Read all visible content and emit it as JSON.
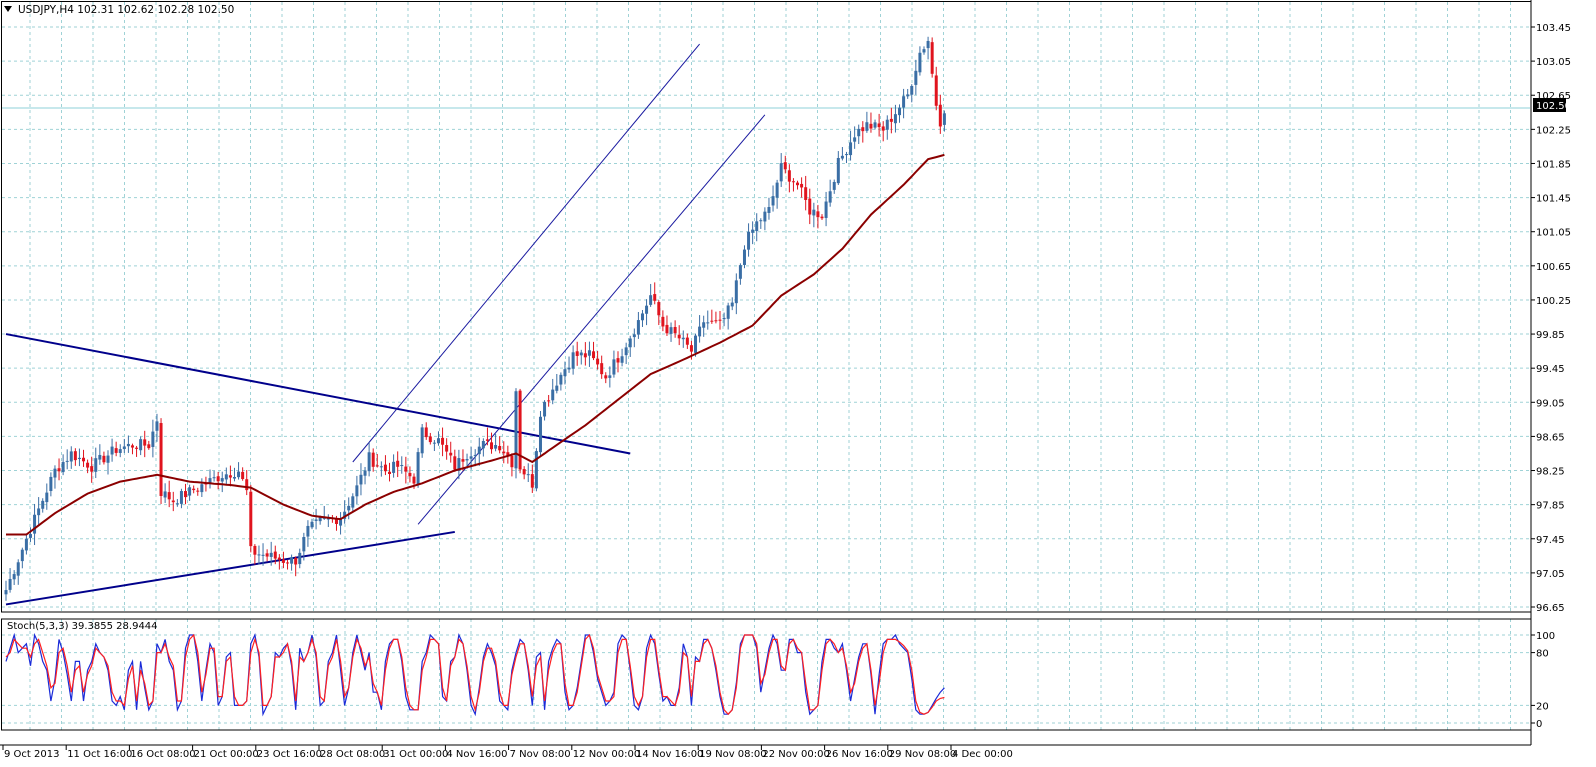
{
  "header": {
    "symbol_info": "USDJPY,H4  102.31 102.62 102.28 102.50",
    "menu_icon": "triangle-down-icon"
  },
  "colors": {
    "background": "#ffffff",
    "grid": "#9fd2d6",
    "frame": "#000000",
    "bull_candle": "#3a6ea5",
    "bear_candle": "#e0141e",
    "moving_average": "#8b0000",
    "trendline": "#00008b",
    "channel": "#1a1aa0",
    "stoch_main": "#1a2bd8",
    "stoch_signal": "#ff2020",
    "price_label_bg": "#000000",
    "price_label_fg": "#ffffff"
  },
  "chart_data": [
    {
      "type": "candlestick",
      "title": "USDJPY,H4",
      "last_price_label": "102.50",
      "ylim": [
        96.55,
        103.6
      ],
      "y_ticks": [
        "103.45",
        "103.05",
        "102.65",
        "102.25",
        "101.85",
        "101.45",
        "101.05",
        "100.65",
        "100.25",
        "99.85",
        "99.45",
        "99.05",
        "98.65",
        "98.25",
        "97.85",
        "97.45",
        "97.05",
        "96.65"
      ],
      "x_tick_labels": [
        "9 Oct 2013",
        "11 Oct 16:00",
        "16 Oct 08:00",
        "21 Oct 00:00",
        "23 Oct 16:00",
        "28 Oct 08:00",
        "31 Oct 00:00",
        "4 Nov 16:00",
        "7 Nov 08:00",
        "12 Nov 00:00",
        "14 Nov 16:00",
        "19 Nov 08:00",
        "22 Nov 00:00",
        "26 Nov 16:00",
        "29 Nov 08:00",
        "4 Dec 00:00"
      ],
      "bar_count": 231,
      "close_path": [
        [
          0,
          96.85
        ],
        [
          5,
          97.45
        ],
        [
          12,
          98.25
        ],
        [
          16,
          98.45
        ],
        [
          21,
          98.3
        ],
        [
          27,
          98.5
        ],
        [
          31,
          98.55
        ],
        [
          35,
          98.55
        ],
        [
          37,
          98.85
        ],
        [
          38,
          98.0
        ],
        [
          41,
          97.9
        ],
        [
          45,
          98.0
        ],
        [
          49,
          98.1
        ],
        [
          53,
          98.2
        ],
        [
          57,
          98.25
        ],
        [
          59,
          98.0
        ],
        [
          60,
          97.3
        ],
        [
          64,
          97.25
        ],
        [
          68,
          97.2
        ],
        [
          71,
          97.2
        ],
        [
          74,
          97.55
        ],
        [
          77,
          97.65
        ],
        [
          82,
          97.7
        ],
        [
          86,
          98.05
        ],
        [
          89,
          98.4
        ],
        [
          93,
          98.25
        ],
        [
          96,
          98.3
        ],
        [
          100,
          98.15
        ],
        [
          102,
          98.7
        ],
        [
          106,
          98.6
        ],
        [
          110,
          98.3
        ],
        [
          113,
          98.45
        ],
        [
          117,
          98.55
        ],
        [
          121,
          98.55
        ],
        [
          124,
          98.35
        ],
        [
          125,
          99.2
        ],
        [
          126,
          98.3
        ],
        [
          129,
          98.1
        ],
        [
          131,
          98.95
        ],
        [
          135,
          99.3
        ],
        [
          139,
          99.6
        ],
        [
          143,
          99.6
        ],
        [
          147,
          99.35
        ],
        [
          151,
          99.65
        ],
        [
          155,
          100.0
        ],
        [
          158,
          100.3
        ],
        [
          161,
          99.95
        ],
        [
          165,
          99.8
        ],
        [
          168,
          99.65
        ],
        [
          171,
          100.0
        ],
        [
          175,
          99.95
        ],
        [
          178,
          100.2
        ],
        [
          181,
          100.9
        ],
        [
          184,
          101.15
        ],
        [
          187,
          101.3
        ],
        [
          190,
          101.8
        ],
        [
          194,
          101.6
        ],
        [
          197,
          101.3
        ],
        [
          200,
          101.25
        ],
        [
          204,
          101.85
        ],
        [
          208,
          102.2
        ],
        [
          211,
          102.3
        ],
        [
          215,
          102.25
        ],
        [
          218,
          102.45
        ],
        [
          221,
          102.65
        ],
        [
          224,
          103.15
        ],
        [
          226,
          103.3
        ],
        [
          227,
          102.9
        ],
        [
          228,
          102.55
        ],
        [
          229,
          102.35
        ],
        [
          230,
          102.5
        ]
      ],
      "ma_path": [
        [
          0,
          97.5
        ],
        [
          5,
          97.5
        ],
        [
          12,
          97.75
        ],
        [
          20,
          97.98
        ],
        [
          28,
          98.12
        ],
        [
          37,
          98.2
        ],
        [
          45,
          98.12
        ],
        [
          55,
          98.08
        ],
        [
          60,
          98.05
        ],
        [
          68,
          97.85
        ],
        [
          75,
          97.72
        ],
        [
          82,
          97.68
        ],
        [
          88,
          97.85
        ],
        [
          95,
          98.0
        ],
        [
          102,
          98.1
        ],
        [
          110,
          98.25
        ],
        [
          120,
          98.38
        ],
        [
          125,
          98.45
        ],
        [
          129,
          98.35
        ],
        [
          135,
          98.55
        ],
        [
          142,
          98.78
        ],
        [
          150,
          99.08
        ],
        [
          158,
          99.38
        ],
        [
          166,
          99.55
        ],
        [
          175,
          99.75
        ],
        [
          183,
          99.95
        ],
        [
          190,
          100.3
        ],
        [
          198,
          100.55
        ],
        [
          205,
          100.85
        ],
        [
          212,
          101.25
        ],
        [
          220,
          101.6
        ],
        [
          226,
          101.9
        ],
        [
          230,
          101.95
        ]
      ],
      "trendlines": [
        {
          "name": "upper-resistance",
          "points": [
            [
              0,
              99.85
            ],
            [
              153,
              98.45
            ]
          ]
        },
        {
          "name": "lower-support",
          "points": [
            [
              0,
              96.68
            ],
            [
              110,
              97.53
            ]
          ]
        },
        {
          "name": "channel-upper",
          "points": [
            [
              85,
              98.35
            ],
            [
              170,
              103.25
            ]
          ]
        },
        {
          "name": "channel-lower",
          "points": [
            [
              101,
              97.62
            ],
            [
              186,
              102.42
            ]
          ]
        }
      ]
    },
    {
      "type": "line",
      "title": "Stoch(5,3,3) 39.3855 28.9444",
      "ylim": [
        0,
        100
      ],
      "y_ticks": [
        "100",
        "80",
        "20",
        "0"
      ],
      "series": [
        {
          "key": "main",
          "values": [
            70,
            85,
            100,
            80,
            85,
            90,
            65,
            100,
            90,
            70,
            60,
            25,
            50,
            95,
            80,
            55,
            25,
            70,
            70,
            25,
            60,
            70,
            90,
            80,
            75,
            60,
            25,
            20,
            30,
            15,
            60,
            70,
            15,
            70,
            40,
            15,
            25,
            90,
            80,
            95,
            70,
            60,
            15,
            25,
            85,
            100,
            100,
            70,
            25,
            60,
            90,
            80,
            20,
            30,
            75,
            80,
            20,
            20,
            20,
            25,
            90,
            100,
            75,
            10,
            20,
            30,
            80,
            75,
            85,
            90,
            65,
            15,
            85,
            70,
            80,
            100,
            75,
            20,
            25,
            70,
            80,
            100,
            60,
            20,
            40,
            80,
            100,
            80,
            60,
            80,
            35,
            35,
            15,
            70,
            90,
            95,
            95,
            70,
            30,
            15,
            15,
            15,
            70,
            80,
            100,
            95,
            90,
            30,
            25,
            70,
            75,
            100,
            90,
            60,
            20,
            10,
            40,
            75,
            90,
            80,
            65,
            25,
            20,
            15,
            60,
            80,
            95,
            90,
            60,
            20,
            75,
            80,
            15,
            70,
            85,
            95,
            90,
            35,
            15,
            20,
            40,
            70,
            100,
            100,
            80,
            50,
            35,
            20,
            25,
            35,
            90,
            100,
            95,
            60,
            20,
            15,
            30,
            85,
            100,
            90,
            55,
            25,
            30,
            20,
            20,
            40,
            90,
            75,
            20,
            75,
            70,
            95,
            95,
            85,
            60,
            30,
            10,
            10,
            15,
            45,
            90,
            100,
            100,
            100,
            85,
            35,
            60,
            85,
            100,
            90,
            60,
            60,
            95,
            95,
            80,
            80,
            35,
            10,
            15,
            20,
            70,
            95,
            95,
            85,
            80,
            90,
            60,
            25,
            50,
            75,
            90,
            90,
            55,
            10,
            55,
            90,
            95,
            95,
            100,
            90,
            85,
            80,
            50,
            15,
            10,
            10,
            12,
            20,
            28,
            35,
            40
          ]
        },
        {
          "key": "signal",
          "values": [
            75,
            80,
            95,
            90,
            85,
            85,
            75,
            90,
            95,
            80,
            65,
            40,
            45,
            80,
            85,
            65,
            35,
            60,
            65,
            35,
            55,
            65,
            85,
            80,
            75,
            65,
            35,
            25,
            25,
            20,
            50,
            65,
            25,
            60,
            45,
            20,
            25,
            80,
            80,
            90,
            75,
            65,
            25,
            25,
            75,
            95,
            100,
            80,
            35,
            55,
            85,
            85,
            30,
            30,
            70,
            75,
            30,
            20,
            20,
            25,
            80,
            95,
            80,
            20,
            20,
            30,
            75,
            75,
            80,
            90,
            70,
            25,
            75,
            70,
            80,
            95,
            80,
            30,
            25,
            65,
            75,
            95,
            70,
            30,
            40,
            75,
            95,
            85,
            65,
            75,
            45,
            35,
            20,
            60,
            85,
            95,
            95,
            75,
            40,
            20,
            15,
            15,
            60,
            75,
            95,
            95,
            90,
            40,
            25,
            65,
            75,
            95,
            90,
            65,
            30,
            15,
            35,
            70,
            85,
            85,
            70,
            35,
            20,
            20,
            55,
            75,
            90,
            90,
            65,
            30,
            65,
            75,
            25,
            60,
            80,
            90,
            90,
            45,
            20,
            20,
            35,
            65,
            95,
            100,
            85,
            55,
            40,
            25,
            25,
            30,
            80,
            95,
            95,
            65,
            30,
            20,
            30,
            75,
            95,
            95,
            60,
            30,
            30,
            25,
            20,
            35,
            80,
            75,
            30,
            70,
            70,
            90,
            95,
            85,
            65,
            35,
            15,
            10,
            15,
            40,
            85,
            100,
            100,
            100,
            90,
            45,
            55,
            80,
            95,
            95,
            65,
            60,
            90,
            95,
            85,
            80,
            45,
            15,
            15,
            20,
            60,
            90,
            95,
            90,
            80,
            85,
            65,
            35,
            45,
            70,
            85,
            90,
            60,
            20,
            45,
            80,
            95,
            95,
            95,
            92,
            88,
            82,
            60,
            25,
            12,
            10,
            12,
            18,
            25,
            28,
            29
          ]
        }
      ]
    }
  ]
}
